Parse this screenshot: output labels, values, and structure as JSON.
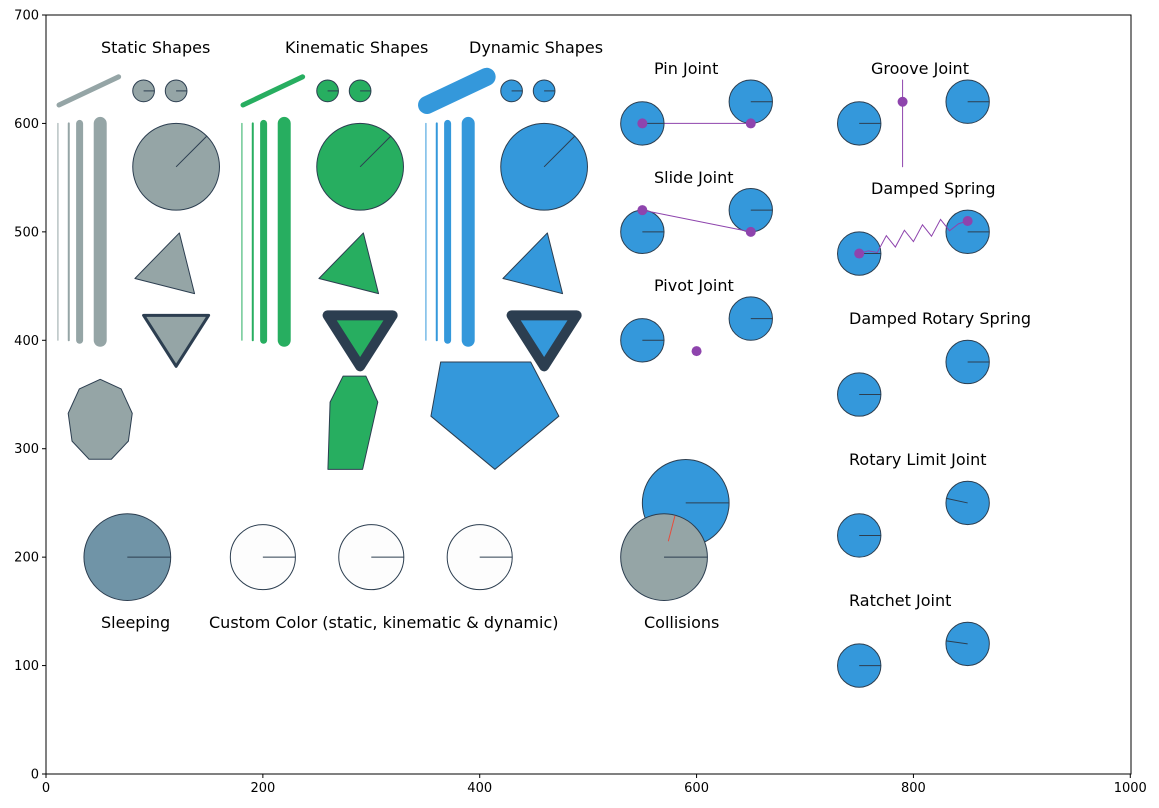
{
  "colors": {
    "static": "#95a5a6",
    "kinematic": "#27ae60",
    "dynamic": "#3498db",
    "outline": "#2c3e50",
    "constraint": "#8e44ad",
    "sleeping": "#7094a7",
    "custom": "#fdfdfd",
    "collision": "#e74c3c"
  },
  "axes": {
    "xlim": [
      0,
      1000
    ],
    "ylim": [
      0,
      700
    ],
    "x_ticks": [
      "0",
      "200",
      "400",
      "600",
      "800",
      "1000"
    ],
    "y_ticks": [
      "0",
      "100",
      "200",
      "300",
      "400",
      "500",
      "600",
      "700"
    ]
  },
  "labels": {
    "static_shapes": "Static Shapes",
    "kinematic_shapes": "Kinematic Shapes",
    "dynamic_shapes": "Dynamic Shapes",
    "pin_joint": "Pin Joint",
    "slide_joint": "Slide Joint",
    "pivot_joint": "Pivot Joint",
    "groove_joint": "Groove Joint",
    "damped_spring": "Damped Spring",
    "damped_rotary_spring": "Damped Rotary Spring",
    "rotary_limit_joint": "Rotary Limit Joint",
    "ratchet_joint": "Ratchet Joint",
    "sleeping": "Sleeping",
    "custom_color": "Custom Color (static, kinematic & dynamic)",
    "collisions": "Collisions"
  }
}
